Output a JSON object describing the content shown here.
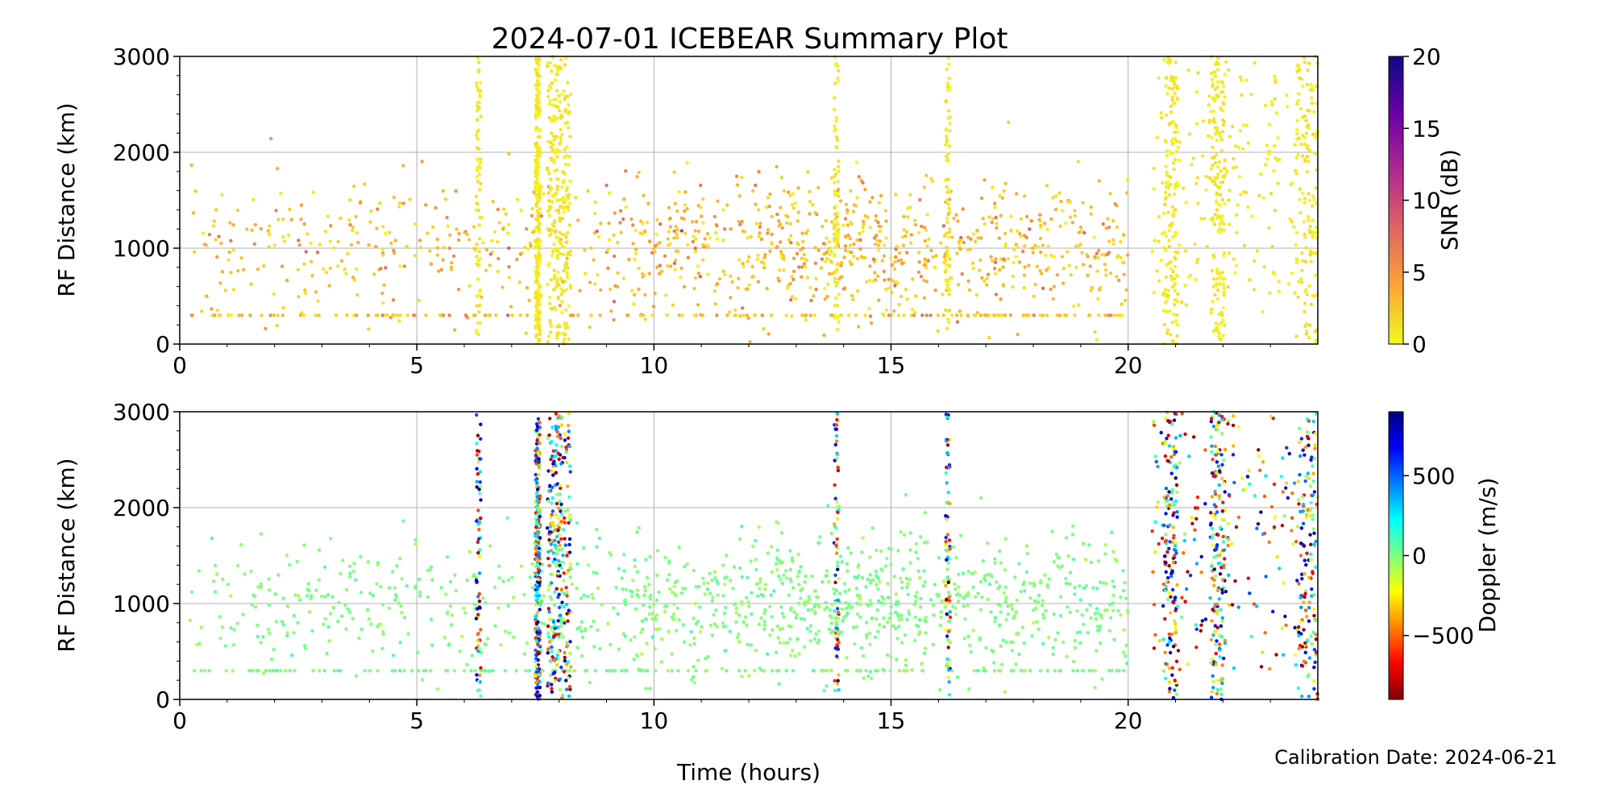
{
  "figure": {
    "title": "2024-07-01 ICEBEAR Summary Plot",
    "xlabel": "Time (hours)",
    "footnote": "Calibration Date: 2024-06-21"
  },
  "chart_data": [
    {
      "type": "scatter",
      "panel": "top",
      "title": "2024-07-01 ICEBEAR Summary Plot",
      "xlabel": "Time (hours)",
      "ylabel": "RF Distance (km)",
      "xlim": [
        0,
        24
      ],
      "ylim": [
        0,
        3000
      ],
      "xticks": [
        0,
        5,
        10,
        15,
        20
      ],
      "yticks": [
        0,
        1000,
        2000,
        3000
      ],
      "grid": true,
      "color_by": "SNR (dB)",
      "colorbar": {
        "label": "SNR (dB)",
        "range": [
          0,
          20
        ],
        "ticks": [
          0,
          5,
          10,
          15,
          20
        ],
        "colormap": "plasma_r",
        "stops": [
          "#f0f921",
          "#fca636",
          "#e16462",
          "#b12a90",
          "#6a00a8",
          "#0d0887"
        ]
      },
      "dense_bands_hours": [
        {
          "x": 6.3,
          "y": [
            0,
            3000
          ]
        },
        {
          "x": 7.55,
          "y": [
            0,
            3000
          ]
        },
        {
          "x": 8.0,
          "y": [
            0,
            3000
          ]
        },
        {
          "x": 13.85,
          "y": [
            0,
            3000
          ]
        },
        {
          "x": 16.2,
          "y": [
            0,
            3000
          ]
        },
        {
          "x": 20.9,
          "y": [
            0,
            3000
          ]
        },
        {
          "x": 21.9,
          "y": [
            0,
            3000
          ]
        },
        {
          "x": 23.8,
          "y": [
            0,
            3000
          ]
        }
      ],
      "background_cluster": {
        "x_range": [
          0.2,
          20.0
        ],
        "y_center": 1000,
        "y_spread": 450,
        "snr_typical": [
          0,
          6
        ]
      },
      "range_floor_line_km": 300
    },
    {
      "type": "scatter",
      "panel": "bottom",
      "xlabel": "Time (hours)",
      "ylabel": "RF Distance (km)",
      "xlim": [
        0,
        24
      ],
      "ylim": [
        0,
        3000
      ],
      "xticks": [
        0,
        5,
        10,
        15,
        20
      ],
      "yticks": [
        0,
        1000,
        2000,
        3000
      ],
      "grid": true,
      "color_by": "Doppler (m/s)",
      "colorbar": {
        "label": "Doppler (m/s)",
        "range": [
          -900,
          900
        ],
        "ticks": [
          -500,
          0,
          500
        ],
        "tick_labels": [
          "−500",
          "0",
          "500"
        ],
        "colormap": "jet_r",
        "stops": [
          "#800000",
          "#ff0000",
          "#ff8000",
          "#ffff00",
          "#80ff80",
          "#00ffff",
          "#0080ff",
          "#0000ff",
          "#000080"
        ]
      },
      "dense_bands_hours": [
        {
          "x": 6.3,
          "y": [
            0,
            3000
          ]
        },
        {
          "x": 7.55,
          "y": [
            0,
            3000
          ]
        },
        {
          "x": 8.0,
          "y": [
            0,
            3000
          ]
        },
        {
          "x": 13.85,
          "y": [
            0,
            3000
          ]
        },
        {
          "x": 16.2,
          "y": [
            0,
            3000
          ]
        },
        {
          "x": 20.9,
          "y": [
            0,
            3000
          ]
        },
        {
          "x": 21.9,
          "y": [
            0,
            3000
          ]
        },
        {
          "x": 23.8,
          "y": [
            0,
            3000
          ]
        }
      ],
      "background_cluster": {
        "x_range": [
          0.2,
          20.0
        ],
        "y_center": 1000,
        "y_spread": 450,
        "doppler_typical": 0
      },
      "range_floor_line_km": 300
    }
  ]
}
